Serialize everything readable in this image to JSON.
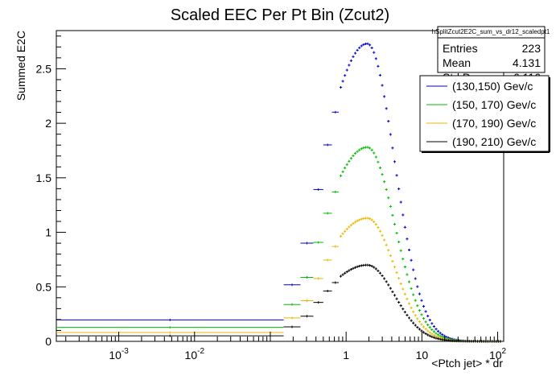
{
  "chart_data": {
    "type": "scatter",
    "title": "Scaled EEC Per Pt Bin (Zcut2)",
    "xlabel": "<Ptch jet> * dr",
    "ylabel": "Summed E2C",
    "xscale": "log",
    "xlim": [
      0.00015,
      120
    ],
    "ylim": [
      0,
      2.85
    ],
    "x_ticks": [
      {
        "value": 0.001,
        "base": "10",
        "exp": "-3"
      },
      {
        "value": 0.01,
        "base": "10",
        "exp": "-2"
      },
      {
        "value": 1,
        "base": "1",
        "exp": ""
      },
      {
        "value": 10,
        "base": "10",
        "exp": ""
      },
      {
        "value": 100,
        "base": "10",
        "exp": "2"
      }
    ],
    "y_ticks": [
      {
        "value": 0,
        "label": "0"
      },
      {
        "value": 0.5,
        "label": "0.5"
      },
      {
        "value": 1,
        "label": "1"
      },
      {
        "value": 1.5,
        "label": "1.5"
      },
      {
        "value": 2,
        "label": "2"
      },
      {
        "value": 2.5,
        "label": "2.5"
      }
    ],
    "shape": {
      "peak_x": 1.9,
      "width_below": 0.62,
      "width_above": 0.36
    },
    "low_bins": [
      {
        "x_low": 0.00015,
        "x_high": 0.15,
        "frac": 0.072
      },
      {
        "x_low": 0.15,
        "x_high": 0.25,
        "frac": 0.19
      },
      {
        "x_low": 0.25,
        "x_high": 0.37,
        "frac": 0.33
      },
      {
        "x_low": 0.37,
        "x_high": 0.5,
        "frac": 0.51
      },
      {
        "x_low": 0.5,
        "x_high": 0.65,
        "frac": 0.66
      },
      {
        "x_low": 0.65,
        "x_high": 0.8,
        "frac": 0.77
      }
    ],
    "series": [
      {
        "name": "(130,150) Gev/c",
        "color": "#0000cc",
        "peak": 2.73
      },
      {
        "name": "(150, 170) Gev/c",
        "color": "#00bb00",
        "peak": 1.78
      },
      {
        "name": "(170, 190) Gev/c",
        "color": "#e8b800",
        "peak": 1.13
      },
      {
        "name": "(190, 210) Gev/c",
        "color": "#000000",
        "peak": 0.7
      }
    ],
    "legend_position": "top-right",
    "stats_box": {
      "title": "hSplitZcut2E2C_sum_vs_dr12_scaledpt1",
      "rows": [
        {
          "label": "Entries",
          "value": "223"
        },
        {
          "label": "Mean",
          "value": "4.131"
        },
        {
          "label": "Std Dev",
          "value": "6.116"
        }
      ]
    }
  }
}
